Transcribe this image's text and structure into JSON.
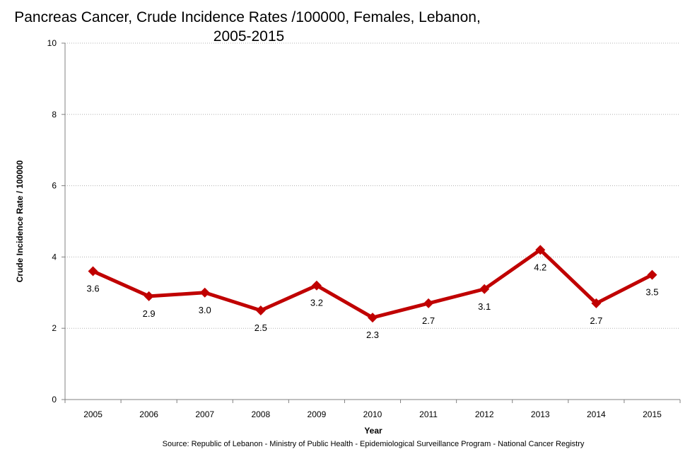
{
  "chart_data": {
    "type": "line",
    "title_line1": "Pancreas Cancer, Crude Incidence Rates /100000, Females, Lebanon,",
    "title_line2": "2005-2015",
    "xlabel": "Year",
    "ylabel": "Crude Incidence Rate / 100000",
    "categories": [
      "2005",
      "2006",
      "2007",
      "2008",
      "2009",
      "2010",
      "2011",
      "2012",
      "2013",
      "2014",
      "2015"
    ],
    "values": [
      3.6,
      2.9,
      3.0,
      2.5,
      3.2,
      2.3,
      2.7,
      3.1,
      4.2,
      2.7,
      3.5
    ],
    "data_labels": [
      "3.6",
      "2.9",
      "3.0",
      "2.5",
      "3.2",
      "2.3",
      "2.7",
      "3.1",
      "4.2",
      "2.7",
      "3.5"
    ],
    "ylim": [
      0,
      10
    ],
    "yticks": [
      "0",
      "2",
      "4",
      "6",
      "8",
      "10"
    ],
    "grid": "horizontal dotted",
    "legend": "none",
    "marker": "diamond",
    "line_color": "#c00000",
    "source": "Source:  Republic of Lebanon - Ministry of Public Health - Epidemiological Surveillance Program - National Cancer Registry"
  }
}
